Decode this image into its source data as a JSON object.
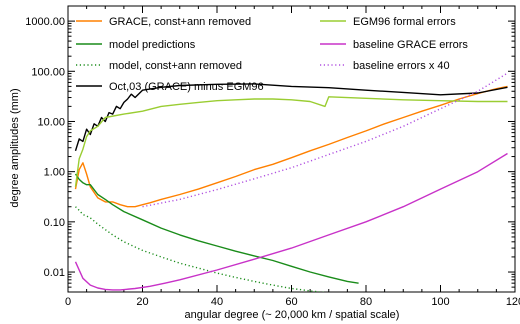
{
  "chart_data": {
    "type": "line",
    "title": "",
    "xlabel": "angular degree (~ 20,000 km / spatial scale)",
    "ylabel": "degree amplitudes (mm)",
    "xlim": [
      0,
      120
    ],
    "ylim": [
      0.004,
      2000
    ],
    "yscale": "log",
    "x_ticks": [
      0,
      20,
      40,
      60,
      80,
      100,
      120
    ],
    "y_ticks": [
      {
        "value": 0.01,
        "label": "0.01"
      },
      {
        "value": 0.1,
        "label": "0.10"
      },
      {
        "value": 1,
        "label": "1.00"
      },
      {
        "value": 10,
        "label": "10.00"
      },
      {
        "value": 100,
        "label": "100.00"
      },
      {
        "value": 1000,
        "label": "1000.00"
      }
    ],
    "grid": false,
    "legend_placement": "top, two columns",
    "series": [
      {
        "name": "GRACE, const+ann removed",
        "color": "#ff8000",
        "dash": "solid",
        "x": [
          2,
          3,
          4,
          5,
          6,
          8,
          10,
          12,
          14,
          16,
          18,
          20,
          22,
          25,
          30,
          35,
          40,
          45,
          50,
          55,
          60,
          65,
          70,
          75,
          80,
          85,
          90,
          95,
          100,
          105,
          110,
          115,
          118
        ],
        "y": [
          0.45,
          1.1,
          1.5,
          0.9,
          0.5,
          0.3,
          0.25,
          0.25,
          0.22,
          0.2,
          0.2,
          0.22,
          0.24,
          0.28,
          0.35,
          0.45,
          0.6,
          0.8,
          1.1,
          1.4,
          1.9,
          2.6,
          3.5,
          4.8,
          6.5,
          9,
          12,
          16,
          21,
          28,
          36,
          45,
          50
        ]
      },
      {
        "name": "model predictions",
        "color": "#1a8c1a",
        "dash": "solid",
        "x": [
          2,
          3,
          4,
          5,
          6,
          8,
          10,
          12,
          15,
          20,
          25,
          30,
          35,
          40,
          45,
          50,
          55,
          60,
          65,
          70,
          75,
          78
        ],
        "y": [
          0.9,
          0.7,
          0.6,
          0.55,
          0.55,
          0.35,
          0.28,
          0.22,
          0.16,
          0.11,
          0.075,
          0.055,
          0.042,
          0.033,
          0.026,
          0.021,
          0.017,
          0.013,
          0.01,
          0.008,
          0.0065,
          0.006
        ]
      },
      {
        "name": "model, const+ann removed",
        "color": "#1a8c1a",
        "dash": "dotted",
        "x": [
          2,
          3,
          4,
          5,
          6,
          8,
          10,
          12,
          15,
          20,
          25,
          30,
          35,
          40,
          45,
          50,
          55,
          60,
          65,
          70,
          75,
          78
        ],
        "y": [
          0.2,
          0.17,
          0.14,
          0.13,
          0.12,
          0.09,
          0.07,
          0.055,
          0.04,
          0.027,
          0.02,
          0.015,
          0.012,
          0.0095,
          0.0078,
          0.0065,
          0.0055,
          0.0047,
          0.0042,
          0.0038,
          0.0035,
          0.0034
        ]
      },
      {
        "name": "Oct,03 (GRACE) minus EGM96",
        "color": "#000000",
        "dash": "solid",
        "x": [
          2,
          3,
          4,
          5,
          6,
          7,
          8,
          9,
          10,
          11,
          12,
          13,
          14,
          15,
          16,
          17,
          18,
          20,
          25,
          30,
          40,
          50,
          60,
          70,
          80,
          90,
          100,
          110,
          118
        ],
        "y": [
          2.6,
          4.5,
          4,
          7,
          5.5,
          9,
          8,
          12,
          10,
          15,
          14,
          20,
          18,
          24,
          28,
          35,
          30,
          42,
          48,
          52,
          55,
          56,
          50,
          47,
          42,
          38,
          34,
          37,
          48
        ]
      },
      {
        "name": "EGM96 formal errors",
        "color": "#9acd32",
        "dash": "solid",
        "x": [
          2,
          3,
          4,
          5,
          6,
          8,
          10,
          15,
          20,
          25,
          30,
          35,
          40,
          45,
          50,
          55,
          60,
          65,
          69,
          70,
          80,
          90,
          100,
          110,
          118
        ],
        "y": [
          0.5,
          1.8,
          2.8,
          5,
          6.5,
          8,
          12,
          14,
          16,
          20,
          22,
          24,
          26,
          27,
          28,
          28,
          27,
          25,
          20,
          31,
          29,
          27,
          26,
          25,
          25
        ]
      },
      {
        "name": "baseline GRACE errors",
        "color": "#c832c8",
        "dash": "solid",
        "x": [
          2,
          4,
          6,
          8,
          10,
          12,
          14,
          18,
          22,
          26,
          30,
          40,
          50,
          60,
          70,
          80,
          90,
          100,
          110,
          118
        ],
        "y": [
          0.016,
          0.0075,
          0.0055,
          0.0048,
          0.0045,
          0.0044,
          0.0044,
          0.0047,
          0.0052,
          0.006,
          0.007,
          0.011,
          0.018,
          0.03,
          0.055,
          0.1,
          0.2,
          0.45,
          1.0,
          2.3
        ]
      },
      {
        "name": "baseline errors x 40",
        "color": "#b050e0",
        "dash": "dotted",
        "x": [
          20,
          30,
          40,
          50,
          60,
          70,
          80,
          90,
          100,
          110,
          118
        ],
        "y": [
          0.2,
          0.28,
          0.44,
          0.72,
          1.2,
          2.2,
          4,
          8,
          18,
          40,
          92
        ]
      }
    ]
  }
}
